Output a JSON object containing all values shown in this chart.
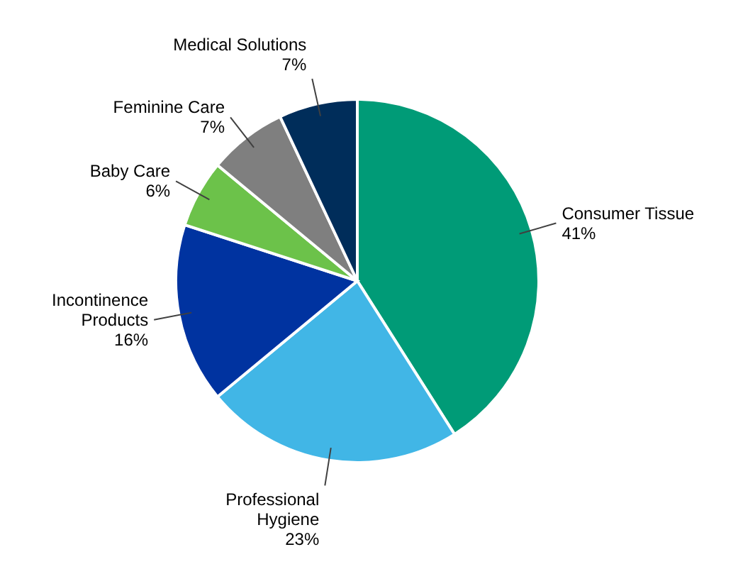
{
  "chart_data": {
    "type": "pie",
    "categories": [
      "Consumer Tissue",
      "Professional Hygiene",
      "Incontinence Products",
      "Baby Care",
      "Feminine Care",
      "Medical Solutions"
    ],
    "values": [
      41,
      23,
      16,
      6,
      7,
      7
    ],
    "value_labels": [
      "41%",
      "23%",
      "16%",
      "6%",
      "7%",
      "7%"
    ],
    "colors": [
      "#009b77",
      "#41b6e6",
      "#0033a0",
      "#6cc24a",
      "#7f7f7f",
      "#002d5a"
    ]
  }
}
